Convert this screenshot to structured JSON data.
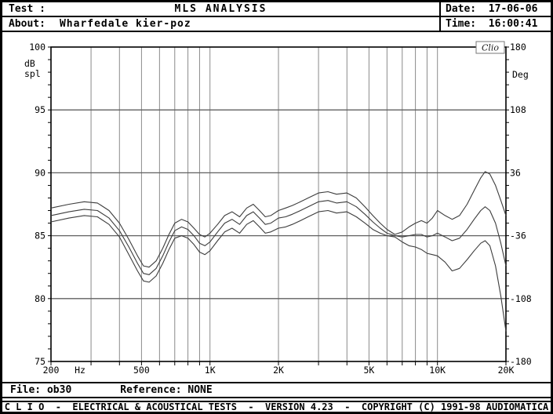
{
  "header": {
    "test_label": "Test :",
    "test_value": "MLS ANALYSIS",
    "about_label": "About:",
    "about_value": "Wharfedale kier-poz",
    "date_label": "Date:",
    "date_value": "17-06-06",
    "time_label": "Time:",
    "time_value": "16:00:41"
  },
  "footer": {
    "file_label": "File:",
    "file_value": "ob30",
    "reference_label": "Reference:",
    "reference_value": "NONE",
    "status_bar": "C L I O  -  ELECTRICAL & ACOUSTICAL TESTS  -  VERSION 4.23  -  COPYRIGHT (C) 1991-98 AUDIOMATICA"
  },
  "chart_data": {
    "type": "line",
    "title": "MLS ANALYSIS",
    "watermark": "Clio",
    "x_scale": "log",
    "x_range": [
      200,
      20000
    ],
    "x_unit": "Hz",
    "x_ticks": [
      {
        "f": 200,
        "label": "200"
      },
      {
        "f": 500,
        "label": "500"
      },
      {
        "f": 1000,
        "label": "1K"
      },
      {
        "f": 2000,
        "label": "2K"
      },
      {
        "f": 5000,
        "label": "5K"
      },
      {
        "f": 10000,
        "label": "10K"
      },
      {
        "f": 20000,
        "label": "20K"
      }
    ],
    "x_gridlines": [
      300,
      400,
      500,
      600,
      700,
      800,
      900,
      1000,
      2000,
      3000,
      4000,
      5000,
      6000,
      7000,
      8000,
      9000,
      10000
    ],
    "left_axis": {
      "unit_lines": [
        "dB",
        "spl"
      ],
      "ticks": [
        100,
        95,
        90,
        85,
        80,
        75
      ],
      "range": [
        75,
        100
      ]
    },
    "right_axis": {
      "unit": "Deg",
      "ticks": [
        180,
        108,
        36,
        -36,
        -108,
        -180
      ],
      "range": [
        -180,
        180
      ]
    },
    "grid": true,
    "colors": {
      "grid_v": "#8a8a8a",
      "grid_h": "#606060",
      "axis": "#000000",
      "curve": "#3c3c3c"
    },
    "frequencies": [
      200,
      240,
      280,
      320,
      360,
      400,
      440,
      480,
      510,
      540,
      580,
      620,
      660,
      700,
      750,
      800,
      850,
      900,
      950,
      1000,
      1080,
      1160,
      1250,
      1350,
      1450,
      1550,
      1650,
      1750,
      1850,
      2000,
      2150,
      2300,
      2500,
      2700,
      3000,
      3300,
      3600,
      4000,
      4400,
      4800,
      5200,
      5600,
      6000,
      6500,
      7000,
      7500,
      8000,
      8500,
      9000,
      9500,
      10000,
      10800,
      11600,
      12500,
      13500,
      14500,
      15500,
      16200,
      17000,
      18000,
      19000,
      20000
    ],
    "series": [
      {
        "name": "response-upper",
        "values": [
          87.2,
          87.5,
          87.7,
          87.6,
          87.0,
          86.0,
          84.7,
          83.4,
          82.6,
          82.5,
          83.0,
          84.0,
          85.1,
          86.0,
          86.3,
          86.1,
          85.6,
          85.1,
          84.9,
          85.2,
          85.9,
          86.6,
          86.9,
          86.5,
          87.2,
          87.5,
          87.0,
          86.5,
          86.6,
          87.0,
          87.2,
          87.4,
          87.7,
          88.0,
          88.4,
          88.5,
          88.3,
          88.4,
          88.0,
          87.3,
          86.6,
          86.0,
          85.5,
          85.1,
          85.3,
          85.7,
          86.0,
          86.2,
          86.0,
          86.4,
          87.0,
          86.6,
          86.3,
          86.6,
          87.5,
          88.6,
          89.6,
          90.1,
          89.9,
          89.0,
          87.8,
          86.6
        ]
      },
      {
        "name": "response-middle",
        "values": [
          86.6,
          86.9,
          87.1,
          87.0,
          86.4,
          85.4,
          84.1,
          82.8,
          82.0,
          81.9,
          82.4,
          83.4,
          84.5,
          85.4,
          85.7,
          85.5,
          85.0,
          84.4,
          84.2,
          84.5,
          85.3,
          86.0,
          86.3,
          85.9,
          86.6,
          86.9,
          86.4,
          85.9,
          86.0,
          86.4,
          86.5,
          86.7,
          87.0,
          87.3,
          87.7,
          87.8,
          87.6,
          87.7,
          87.3,
          86.7,
          86.1,
          85.6,
          85.2,
          85.0,
          84.9,
          85.0,
          85.1,
          85.1,
          84.9,
          85.0,
          85.2,
          84.9,
          84.6,
          84.8,
          85.5,
          86.3,
          87.0,
          87.3,
          87.0,
          86.0,
          84.4,
          82.6
        ]
      },
      {
        "name": "response-lower",
        "values": [
          86.1,
          86.4,
          86.6,
          86.5,
          85.9,
          84.9,
          83.5,
          82.2,
          81.4,
          81.3,
          81.8,
          82.8,
          83.9,
          84.8,
          85.0,
          84.8,
          84.3,
          83.7,
          83.5,
          83.8,
          84.6,
          85.3,
          85.6,
          85.2,
          85.9,
          86.2,
          85.7,
          85.2,
          85.3,
          85.6,
          85.7,
          85.9,
          86.2,
          86.5,
          86.9,
          87.0,
          86.8,
          86.9,
          86.5,
          86.0,
          85.5,
          85.2,
          85.0,
          84.9,
          84.5,
          84.2,
          84.1,
          83.9,
          83.6,
          83.5,
          83.4,
          82.9,
          82.2,
          82.4,
          83.1,
          83.8,
          84.4,
          84.6,
          84.2,
          82.6,
          80.2,
          77.4
        ]
      }
    ]
  }
}
